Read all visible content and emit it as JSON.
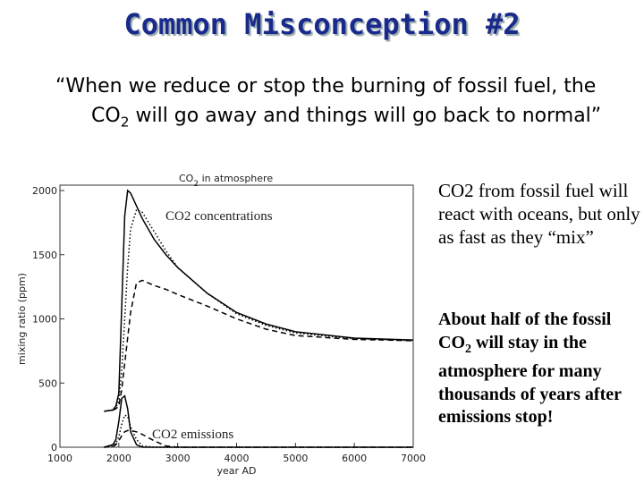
{
  "slide": {
    "title": "Common Misconception #2",
    "quote": [
      "“When we reduce or stop the burning of fossil fuel, the CO",
      "2",
      " will go away and things will go back to normal”"
    ],
    "note_1": "CO2 from fossil fuel will react with oceans, but only as fast as they “mix”",
    "note_2": [
      "About half of the fossil CO",
      "2",
      " will stay in the atmosphere for many thousands of years after emissions stop!"
    ]
  },
  "chart_data": {
    "type": "line",
    "title": [
      "CO",
      "2",
      " in atmosphere"
    ],
    "x_label": "year AD",
    "y_label": "mixing ratio (ppm)",
    "annotations": [
      "CO2 concentrations",
      "CO2 emissions"
    ],
    "x": [
      1750,
      1900,
      1950,
      2000,
      2050,
      2100,
      2150,
      2200,
      2300,
      2400,
      2600,
      2800,
      3000,
      3500,
      4000,
      4500,
      5000,
      6000,
      7000
    ],
    "series": [
      {
        "color": "#000000",
        "style": "solid",
        "values": [
          280,
          290,
          320,
          420,
          1100,
          1800,
          2000,
          1980,
          1880,
          1780,
          1620,
          1500,
          1400,
          1200,
          1050,
          960,
          900,
          850,
          835
        ]
      },
      {
        "color": "#000000",
        "style": "dotted",
        "values": [
          280,
          290,
          310,
          360,
          600,
          1000,
          1400,
          1700,
          1850,
          1830,
          1680,
          1530,
          1400,
          1200,
          1040,
          950,
          890,
          845,
          830
        ]
      },
      {
        "color": "#000000",
        "style": "dashed",
        "values": [
          280,
          290,
          300,
          320,
          450,
          650,
          850,
          1050,
          1280,
          1300,
          1260,
          1230,
          1190,
          1100,
          1000,
          920,
          870,
          840,
          830
        ]
      },
      {
        "color": "#000000",
        "style": "solid",
        "values": [
          0,
          20,
          60,
          200,
          380,
          400,
          300,
          120,
          20,
          0,
          0,
          0,
          0,
          0,
          0,
          0,
          0,
          0,
          0
        ]
      },
      {
        "color": "#000000",
        "style": "dotted",
        "values": [
          0,
          10,
          30,
          80,
          180,
          250,
          240,
          160,
          60,
          10,
          0,
          0,
          0,
          0,
          0,
          0,
          0,
          0,
          0
        ]
      },
      {
        "color": "#000000",
        "style": "dashed",
        "values": [
          0,
          5,
          20,
          50,
          90,
          120,
          130,
          130,
          120,
          100,
          50,
          10,
          0,
          0,
          0,
          0,
          0,
          0,
          0
        ]
      }
    ],
    "xlim": [
      1000,
      7000
    ],
    "xticks": [
      1000,
      2000,
      3000,
      4000,
      5000,
      6000,
      7000
    ],
    "ylim": [
      0,
      2000
    ],
    "yticks": [
      0,
      500,
      1000,
      1500,
      2000
    ]
  }
}
